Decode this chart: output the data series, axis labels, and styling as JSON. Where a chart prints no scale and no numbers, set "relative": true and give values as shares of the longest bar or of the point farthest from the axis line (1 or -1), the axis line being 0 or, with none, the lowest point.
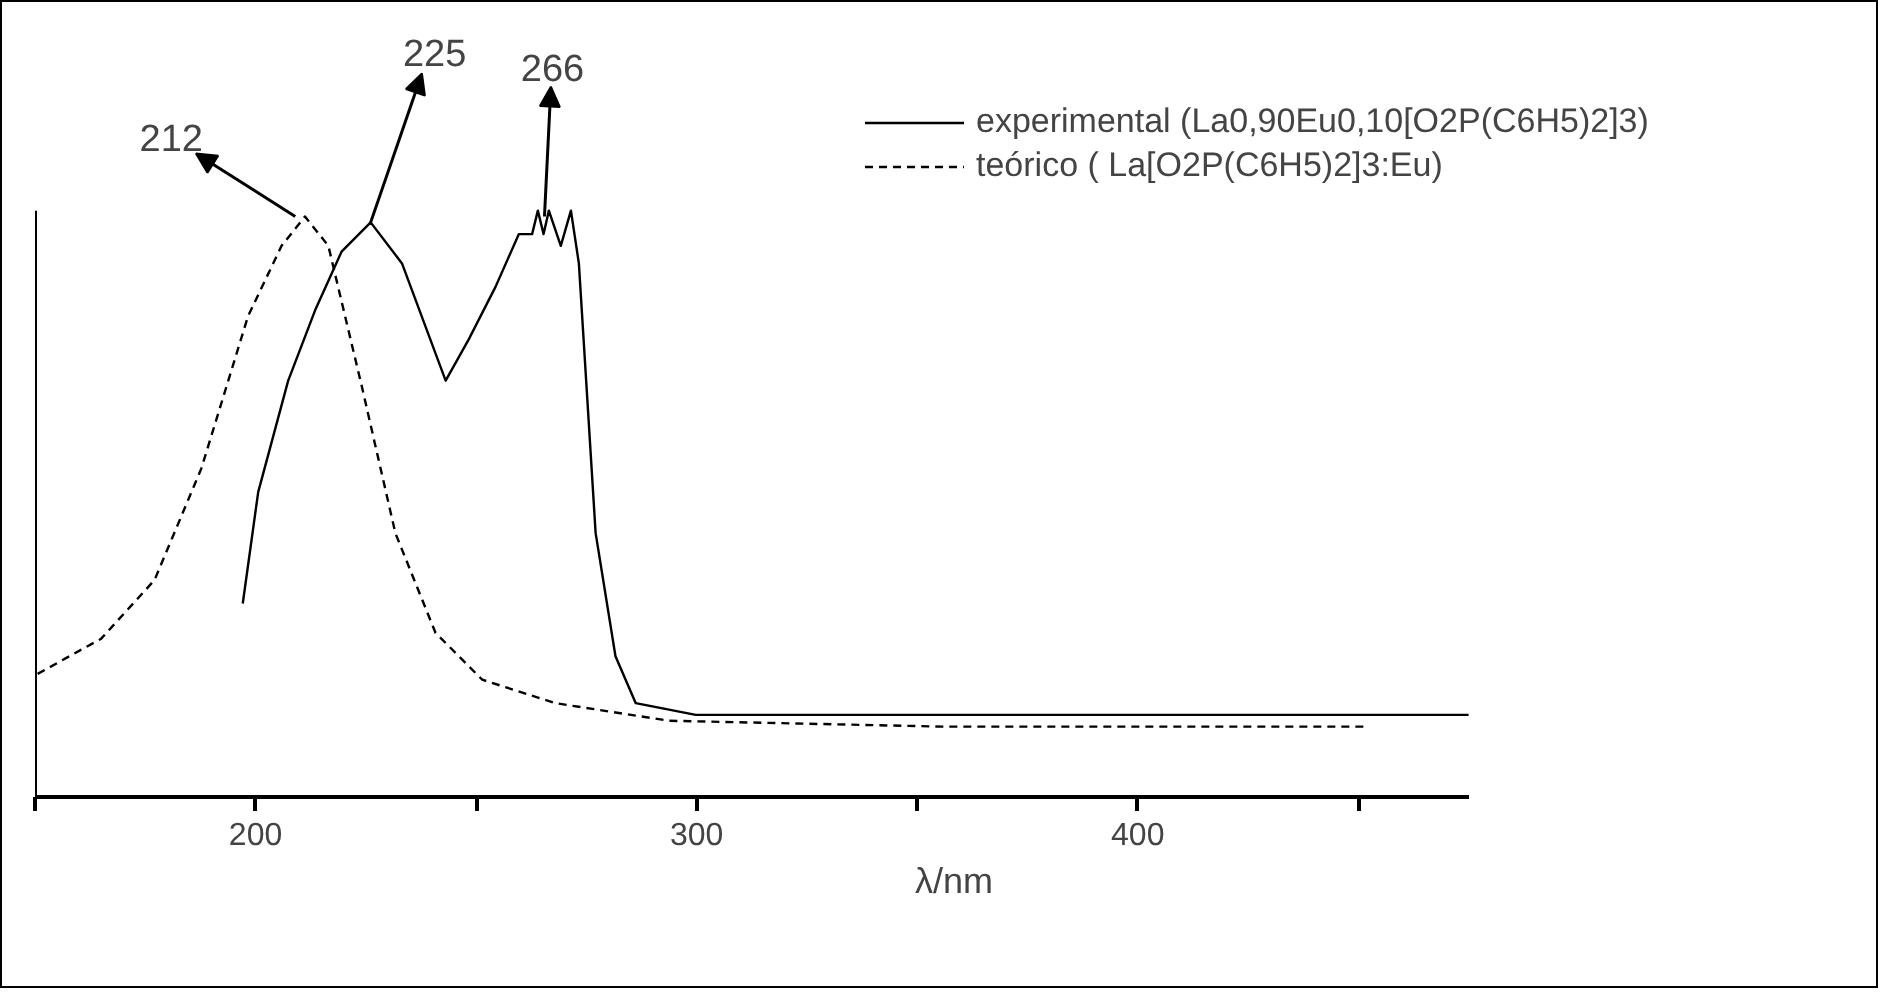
{
  "chart_data": {
    "type": "line",
    "xlabel": "λ/nm",
    "relative": true,
    "xlim": [
      150,
      475
    ],
    "xticks": [
      {
        "value": 150,
        "label": null
      },
      200,
      {
        "value": 250,
        "label": null
      },
      300,
      {
        "value": 350,
        "label": null
      },
      400,
      {
        "value": 450,
        "label": null
      }
    ],
    "legend": "top right",
    "grid": false,
    "series": [
      {
        "name": "experimental (La0,90Eu0,10[O2P(C6H5)2]3)",
        "color": "#000000",
        "line_style": "solid",
        "x": [
          197.1,
          200.6,
          207.4,
          213.5,
          219.5,
          226.1,
          233.2,
          243.1,
          248.3,
          254.4,
          259.7,
          262.7,
          264.0,
          265.3,
          266.5,
          269.2,
          271.5,
          273.3,
          277.1,
          281.6,
          286.2,
          299.8,
          350,
          400,
          450,
          475
        ],
        "values": [
          0.33,
          0.52,
          0.71,
          0.83,
          0.93,
          0.98,
          0.91,
          0.71,
          0.78,
          0.87,
          0.96,
          0.96,
          1.0,
          0.96,
          1.0,
          0.94,
          1.0,
          0.91,
          0.45,
          0.24,
          0.16,
          0.14,
          0.14,
          0.14,
          0.14,
          0.14
        ]
      },
      {
        "name": "teórico ( La[O2P(C6H5)2]3:Eu)",
        "color": "#000000",
        "line_style": "dashed",
        "x": [
          150.6,
          165,
          177.1,
          187.7,
          198.3,
          205.9,
          211.2,
          216.5,
          224.1,
          231.7,
          240.8,
          251.4,
          268,
          293.8,
          355.9,
          451.4
        ],
        "values": [
          0.21,
          0.27,
          0.37,
          0.56,
          0.82,
          0.94,
          0.99,
          0.94,
          0.7,
          0.45,
          0.28,
          0.2,
          0.16,
          0.13,
          0.12,
          0.12
        ]
      }
    ],
    "annotations": [
      {
        "text": "212",
        "x": 209,
        "y": 0.99
      },
      {
        "text": "225",
        "x": 226.1,
        "y": 0.98
      },
      {
        "text": "266",
        "x": 265.5,
        "y": 0.99
      }
    ]
  }
}
